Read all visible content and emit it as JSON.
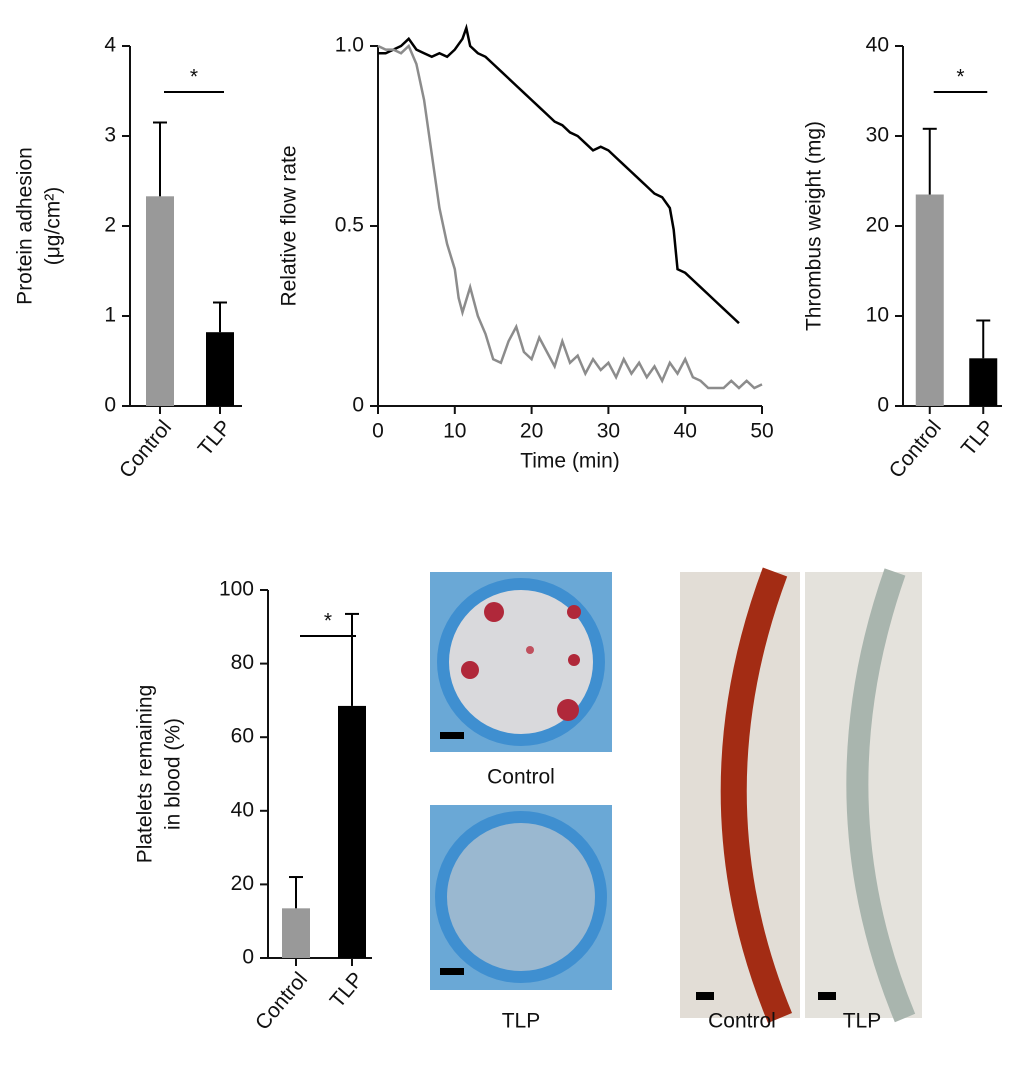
{
  "chart_data": [
    {
      "type": "bar",
      "y_label": [
        "Protein adhesion",
        "(μg/cm²)"
      ],
      "categories": [
        "Control",
        "TLP"
      ],
      "values": [
        2.33,
        0.82
      ],
      "errors": [
        0.82,
        0.33
      ],
      "colors": [
        "#999999",
        "#000000"
      ],
      "ylim": [
        0,
        4
      ],
      "yticks": [
        0,
        1,
        2,
        3,
        4
      ],
      "annotation": "*"
    },
    {
      "type": "line",
      "x_label": "Time (min)",
      "y_label": [
        "Relative flow rate"
      ],
      "xlim": [
        0,
        50
      ],
      "xticks": [
        0,
        10,
        20,
        30,
        40,
        50
      ],
      "ylim": [
        0,
        1
      ],
      "yticks": [
        0,
        0.5,
        {
          "value": 1,
          "label": "1.0"
        }
      ],
      "series": [
        {
          "color": "#000000",
          "x": [
            0,
            1,
            2,
            3,
            4,
            5,
            6,
            7,
            8,
            9,
            10,
            11,
            11.5,
            12,
            13,
            14,
            15,
            16,
            17,
            18,
            19,
            20,
            21,
            22,
            23,
            24,
            25,
            26,
            27,
            28,
            29,
            30,
            31,
            32,
            33,
            34,
            35,
            36,
            37,
            38,
            38.5,
            39,
            40,
            41,
            42,
            43,
            44,
            45,
            46,
            47
          ],
          "values": [
            0.98,
            0.98,
            0.99,
            1.0,
            1.02,
            0.99,
            0.98,
            0.97,
            0.98,
            0.97,
            0.99,
            1.02,
            1.05,
            1.0,
            0.98,
            0.97,
            0.95,
            0.93,
            0.91,
            0.89,
            0.87,
            0.85,
            0.83,
            0.81,
            0.79,
            0.78,
            0.76,
            0.75,
            0.73,
            0.71,
            0.72,
            0.71,
            0.69,
            0.67,
            0.65,
            0.63,
            0.61,
            0.59,
            0.58,
            0.55,
            0.49,
            0.38,
            0.37,
            0.35,
            0.33,
            0.31,
            0.29,
            0.27,
            0.25,
            0.23
          ]
        },
        {
          "color": "#8c8c8c",
          "x": [
            0,
            1,
            2,
            3,
            4,
            5,
            6,
            7,
            8,
            9,
            10,
            10.5,
            11,
            12,
            13,
            14,
            15,
            16,
            17,
            18,
            19,
            20,
            21,
            22,
            23,
            24,
            25,
            26,
            27,
            28,
            29,
            30,
            31,
            32,
            33,
            34,
            35,
            36,
            37,
            38,
            39,
            40,
            41,
            42,
            43,
            44,
            45,
            46,
            47,
            48,
            49,
            50
          ],
          "values": [
            1.0,
            0.99,
            0.99,
            0.98,
            1.0,
            0.95,
            0.85,
            0.7,
            0.55,
            0.45,
            0.38,
            0.3,
            0.26,
            0.33,
            0.25,
            0.2,
            0.13,
            0.12,
            0.18,
            0.22,
            0.15,
            0.13,
            0.19,
            0.15,
            0.11,
            0.18,
            0.12,
            0.14,
            0.09,
            0.13,
            0.1,
            0.12,
            0.08,
            0.13,
            0.09,
            0.12,
            0.08,
            0.11,
            0.07,
            0.12,
            0.09,
            0.13,
            0.08,
            0.07,
            0.05,
            0.05,
            0.05,
            0.07,
            0.05,
            0.07,
            0.05,
            0.06
          ]
        }
      ]
    },
    {
      "type": "bar",
      "y_label": [
        "Thrombus weight (mg)"
      ],
      "categories": [
        "Control",
        "TLP"
      ],
      "values": [
        23.5,
        5.3
      ],
      "errors": [
        7.3,
        4.2
      ],
      "colors": [
        "#999999",
        "#000000"
      ],
      "ylim": [
        0,
        40
      ],
      "yticks": [
        0,
        10,
        20,
        30,
        40
      ],
      "annotation": "*"
    },
    {
      "type": "bar",
      "y_label": [
        "Platelets remaining",
        "in blood (%)"
      ],
      "categories": [
        "Control",
        "TLP"
      ],
      "values": [
        13.5,
        68.5
      ],
      "errors": [
        8.5,
        25
      ],
      "colors": [
        "#999999",
        "#000000"
      ],
      "ylim": [
        0,
        100
      ],
      "yticks": [
        0,
        20,
        40,
        60,
        80,
        100
      ],
      "annotation": "*"
    }
  ],
  "photos": {
    "dish_labels": [
      "Control",
      "TLP"
    ],
    "tube_labels": [
      "Control",
      "TLP"
    ]
  }
}
